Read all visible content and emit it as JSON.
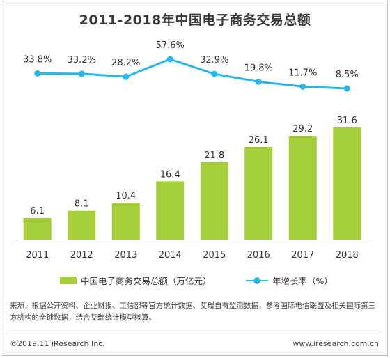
{
  "title": "2011-2018年中国电子商务交易总额",
  "colors": {
    "bar": "#a5cf3a",
    "line": "#29b6e6",
    "axis": "#999999"
  },
  "chart_data": {
    "type": "bar",
    "title": "2011-2018年中国电子商务交易总额",
    "categories": [
      "2011",
      "2012",
      "2013",
      "2014",
      "2015",
      "2016",
      "2017",
      "2018"
    ],
    "series": [
      {
        "name": "中国电子商务交易总额（万亿元）",
        "type": "bar",
        "values": [
          6.1,
          8.1,
          10.4,
          16.4,
          21.8,
          26.1,
          29.2,
          31.6
        ],
        "labels": [
          "6.1",
          "8.1",
          "10.4",
          "16.4",
          "21.8",
          "26.1",
          "29.2",
          "31.6"
        ]
      },
      {
        "name": "年增长率（%）",
        "type": "line",
        "values": [
          33.8,
          33.2,
          28.2,
          57.6,
          32.9,
          19.8,
          11.7,
          8.5
        ],
        "labels": [
          "33.8%",
          "33.2%",
          "28.2%",
          "57.6%",
          "32.9%",
          "19.8%",
          "11.7%",
          "8.5%"
        ]
      }
    ],
    "legend_position": "bottom",
    "grid": false
  },
  "legend": {
    "bar_label": "中国电子商务交易总额（万亿元）",
    "line_label": "年增长率（%）"
  },
  "note": "来源：根据公开资料、企业财报、工信部等官方统计数据、艾瑞自有监测数据，参考国际电信联盟及相关国际第三方机构的全球数据，结合艾瑞统计模型核算。",
  "footer": {
    "copyright": "©2019.11 iResearch Inc.",
    "website": "www.iresearch.com.cn"
  }
}
